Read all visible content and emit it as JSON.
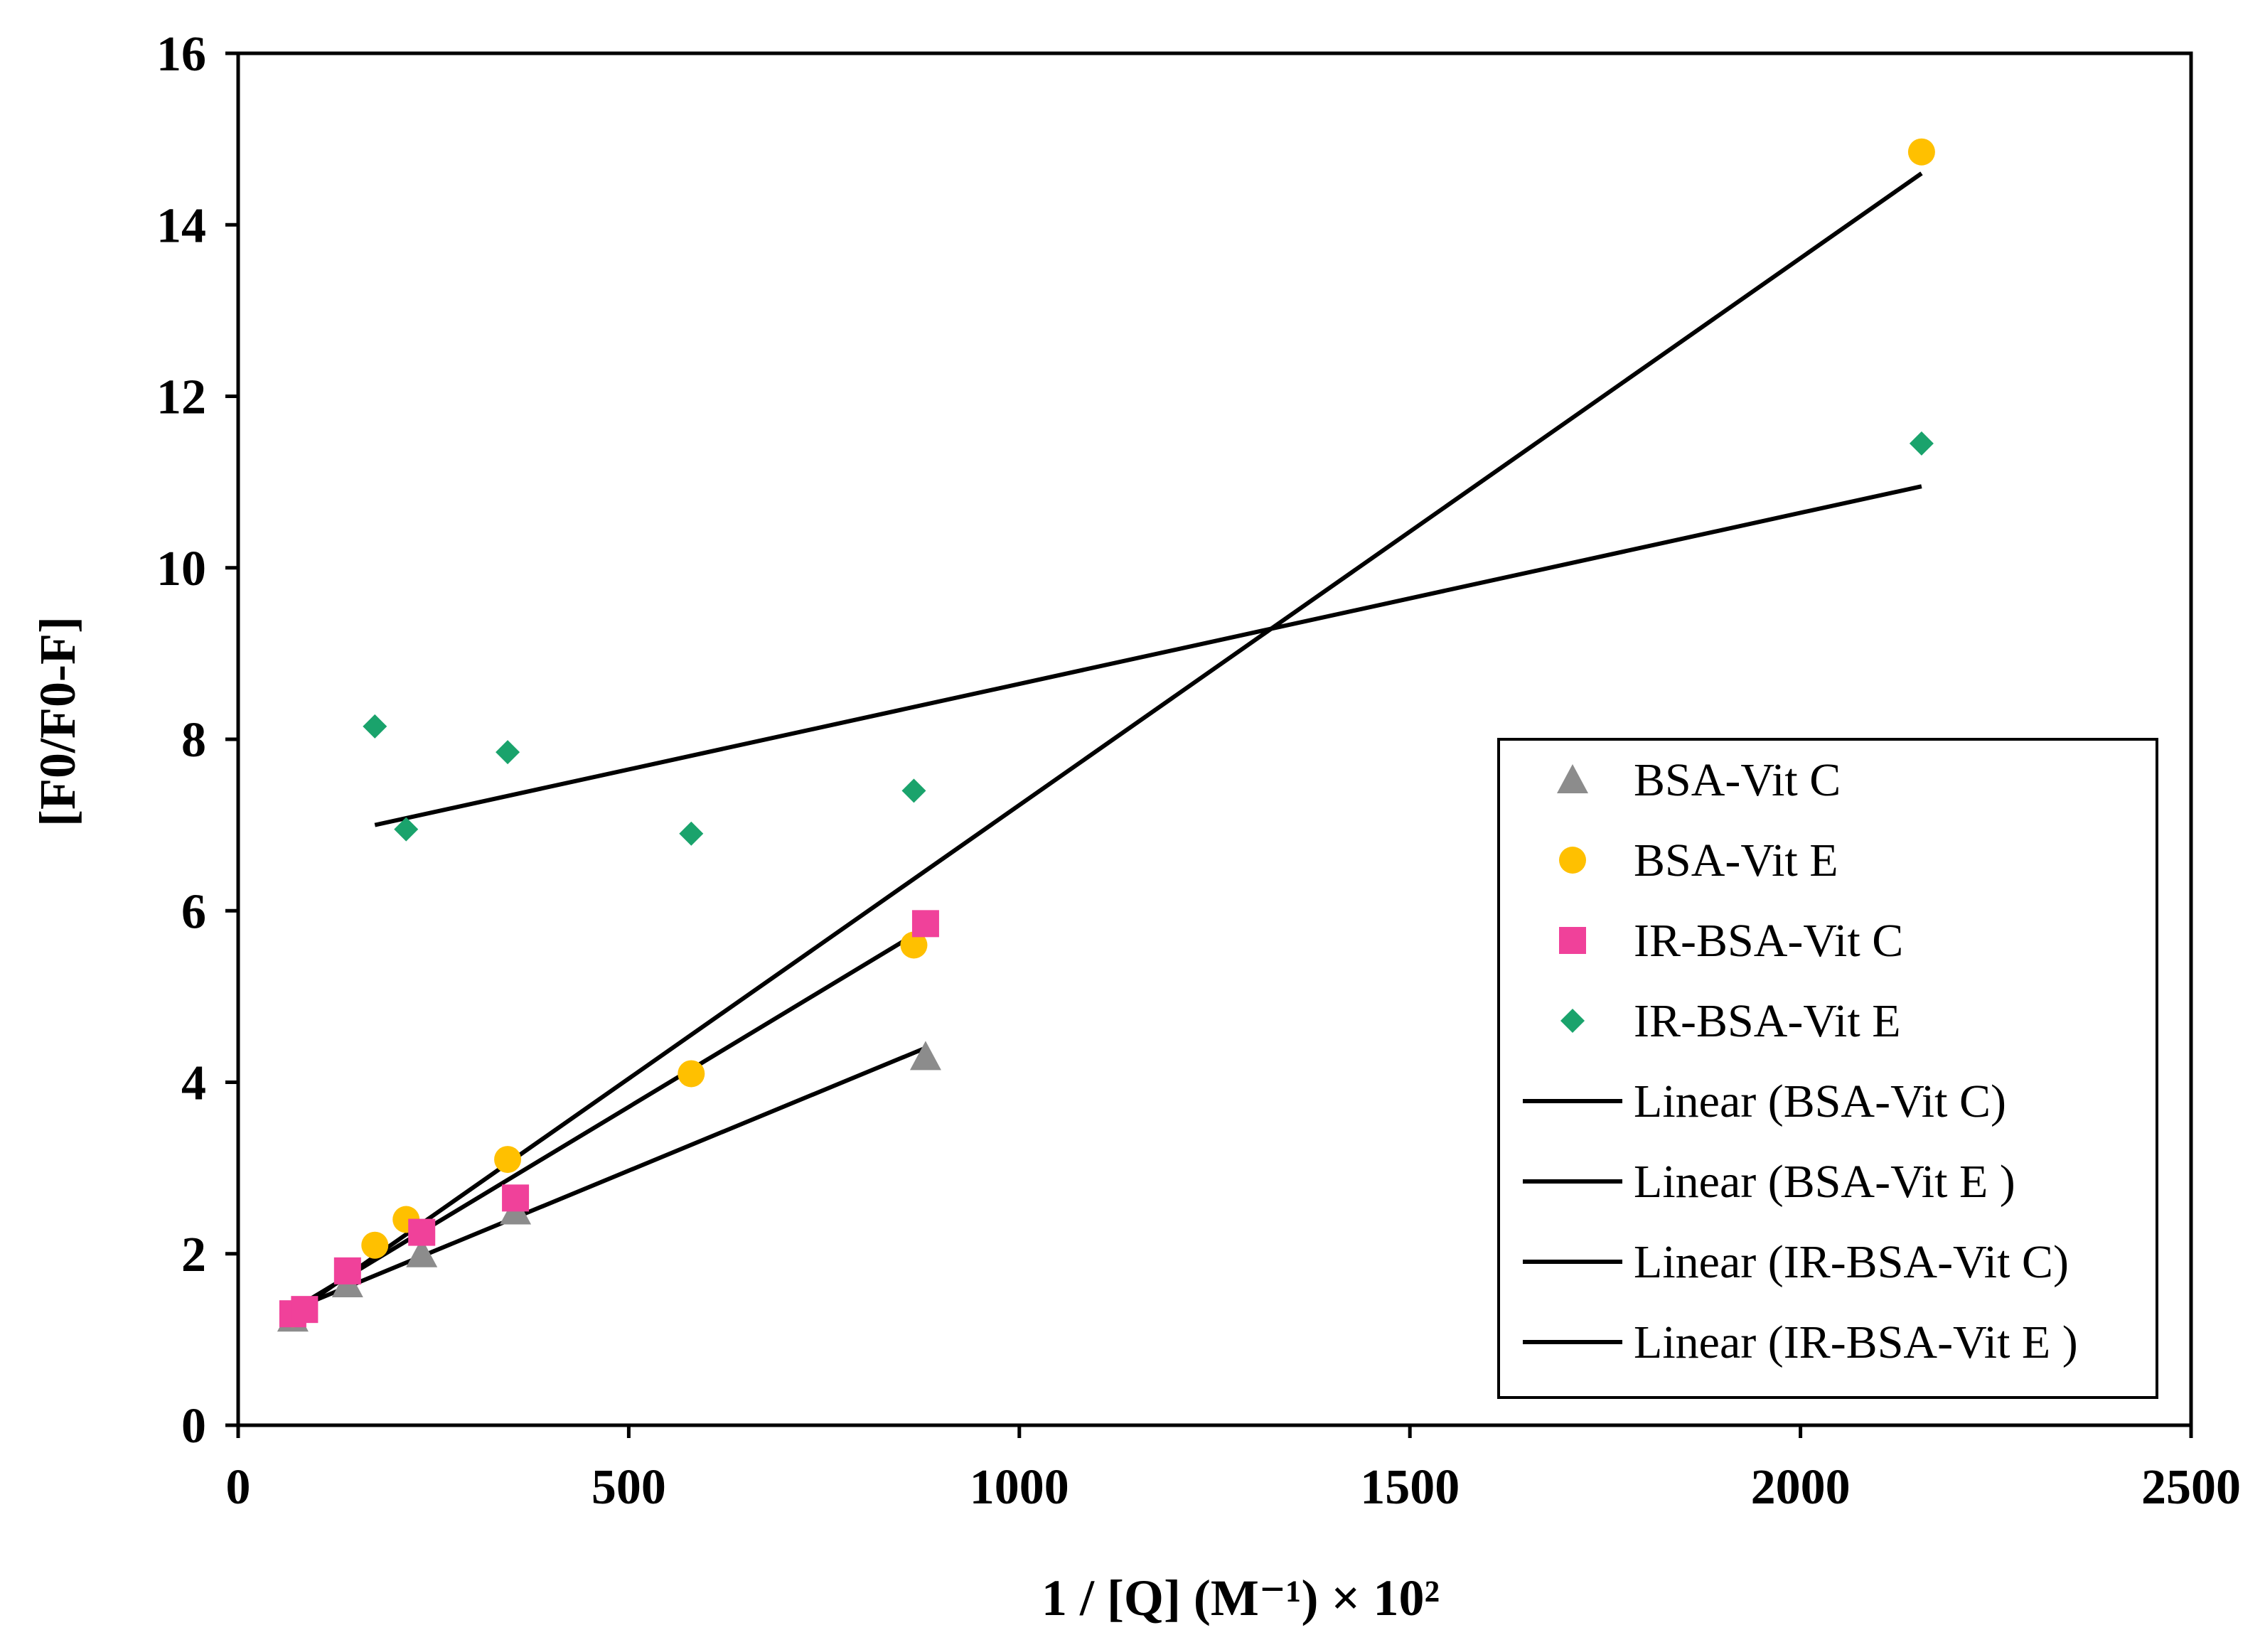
{
  "chart_data": {
    "type": "scatter",
    "title": "",
    "xlabel": "1 / [Q] (M⁻¹) × 10²",
    "ylabel": "[F0/F0-F]",
    "xlim": [
      0,
      2500
    ],
    "ylim": [
      0,
      16
    ],
    "x_ticks": [
      0,
      500,
      1000,
      1500,
      2000,
      2500
    ],
    "y_ticks": [
      0,
      2,
      4,
      6,
      8,
      10,
      12,
      14,
      16
    ],
    "grid": false,
    "legend_position": "right",
    "series": [
      {
        "name": "BSA-Vit C",
        "marker": "triangle",
        "color": "#8c8c8c",
        "x": [
          70,
          140,
          235,
          355,
          880
        ],
        "y": [
          1.25,
          1.65,
          2.0,
          2.5,
          4.3
        ]
      },
      {
        "name": "BSA-Vit E",
        "marker": "circle",
        "color": "#ffc000",
        "x": [
          70,
          175,
          215,
          345,
          580,
          865,
          2155
        ],
        "y": [
          1.3,
          2.1,
          2.4,
          3.1,
          4.1,
          5.6,
          14.85
        ]
      },
      {
        "name": "IR-BSA-Vit C",
        "marker": "square",
        "color": "#f0419a",
        "x": [
          70,
          85,
          140,
          235,
          355,
          880
        ],
        "y": [
          1.3,
          1.35,
          1.8,
          2.25,
          2.65,
          5.85
        ]
      },
      {
        "name": "IR-BSA-Vit E",
        "marker": "diamond",
        "color": "#1aa36c",
        "x": [
          175,
          215,
          345,
          580,
          865,
          2155
        ],
        "y": [
          8.15,
          6.95,
          7.85,
          6.9,
          7.4,
          11.45
        ]
      }
    ],
    "trendlines": [
      {
        "name": "Linear (BSA-Vit C)",
        "x": [
          70,
          880
        ],
        "y": [
          1.35,
          4.4
        ]
      },
      {
        "name": "Linear (BSA-Vit E )",
        "x": [
          70,
          2155
        ],
        "y": [
          1.3,
          14.6
        ]
      },
      {
        "name": "Linear (IR-BSA-Vit C)",
        "x": [
          70,
          880
        ],
        "y": [
          1.35,
          5.8
        ]
      },
      {
        "name": "Linear (IR-BSA-Vit E )",
        "x": [
          175,
          2155
        ],
        "y": [
          7.0,
          10.95
        ]
      }
    ]
  }
}
